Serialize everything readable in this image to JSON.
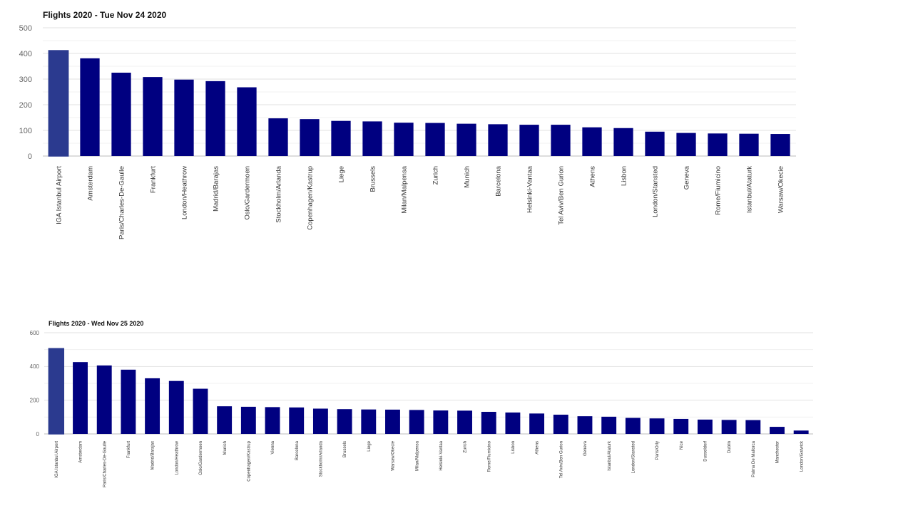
{
  "chart_data": [
    {
      "type": "bar",
      "title": "Flights 2020 - Tue Nov 24 2020",
      "categories": [
        "IGA Istanbul Airport",
        "Amsterdam",
        "Paris/Charles-De-Gaulle",
        "Frankfurt",
        "London/Heathrow",
        "Madrid/Barajas",
        "Oslo/Gardermoen",
        "Stockholm/Arlanda",
        "Copenhagen/Kastrup",
        "Liege",
        "Brussels",
        "Milan/Malpensa",
        "Zurich",
        "Munich",
        "Barcelona",
        "Helsinki-Vantaa",
        "Tel Aviv/Ben Gurion",
        "Athens",
        "Lisbon",
        "London/Stansted",
        "Geneva",
        "Rome/Fiumicino",
        "Istanbul/Ataturk",
        "Warsaw/Okecie"
      ],
      "values": [
        411,
        381,
        325,
        308,
        298,
        292,
        268,
        147,
        144,
        137,
        135,
        130,
        129,
        126,
        124,
        122,
        122,
        112,
        109,
        95,
        90,
        88,
        87,
        86
      ],
      "ylim": [
        0,
        500
      ],
      "yticks": [
        0,
        100,
        200,
        300,
        400,
        500
      ],
      "grid": true,
      "bar_color": "#000080",
      "highlight_color": "#2b3a8f"
    },
    {
      "type": "bar",
      "title": "Flights 2020 - Wed Nov 25 2020",
      "categories": [
        "IGA Istanbul Airport",
        "Amsterdam",
        "Paris/Charles-De-Gaulle",
        "Frankfurt",
        "Madrid/Barajas",
        "London/Heathrow",
        "Oslo/Gardermoen",
        "Munich",
        "Copenhagen/Kastrup",
        "Vienna",
        "Barcelona",
        "Stockholm/Arlanda",
        "Brussels",
        "Liege",
        "Warsaw/Okecie",
        "Milan/Malpensa",
        "Helsinki-Vantaa",
        "Zurich",
        "Rome/Fiumicino",
        "Lisbon",
        "Athens",
        "Tel Aviv/Ben Gurion",
        "Geneva",
        "Istanbul/Ataturk",
        "London/Stansted",
        "Paris/Orly",
        "Nice",
        "Dusseldorf",
        "Dublin",
        "Palma De Mallorca",
        "Manchester",
        "London/Gatwick"
      ],
      "values": [
        506,
        426,
        406,
        381,
        330,
        314,
        268,
        164,
        161,
        159,
        157,
        150,
        147,
        145,
        144,
        142,
        139,
        138,
        131,
        127,
        121,
        114,
        105,
        102,
        95,
        92,
        89,
        85,
        83,
        82,
        42,
        20
      ],
      "ylim": [
        0,
        600
      ],
      "yticks": [
        0,
        200,
        400,
        600
      ],
      "grid": true,
      "bar_color": "#000080",
      "highlight_color": "#2b3a8f"
    }
  ]
}
